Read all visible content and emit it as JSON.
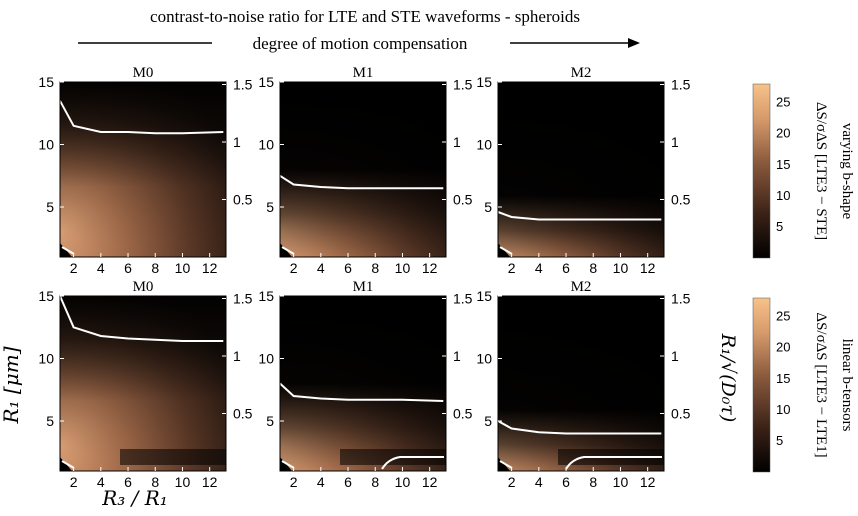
{
  "figure": {
    "title": "contrast-to-noise ratio for LTE and STE waveforms - spheroids",
    "arrow_label": "degree of motion compensation",
    "xlabel": "R₃ / R₁",
    "ylabel": "R₁ [μm]",
    "y2label": "R₁/√(D₀τ)",
    "row_labels": [
      "varying b-shape",
      "linear b-tensors"
    ],
    "colorbar_labels": [
      "ΔS/σΔS [LTE3 − STE]",
      "ΔS/σΔS [LTE3 − LTE1]"
    ],
    "colors": {
      "low": "#000000",
      "high": "#f5c089",
      "contour": "#ffffff"
    }
  },
  "chart_data": [
    {
      "type": "heatmap",
      "row": 0,
      "title": "M0",
      "x_ticks": [
        2,
        4,
        6,
        8,
        10,
        12
      ],
      "y_ticks": [
        5,
        10,
        15
      ],
      "y2_ticks": [
        0.5,
        1,
        1.5
      ],
      "xlim": [
        1,
        13
      ],
      "ylim": [
        1,
        15
      ],
      "contour_level_y": [
        13.5,
        11.5,
        11.0,
        11.0,
        10.9,
        10.9,
        11.0
      ],
      "contour_x": [
        1,
        2,
        4,
        6,
        8,
        10,
        13
      ]
    },
    {
      "type": "heatmap",
      "row": 0,
      "title": "M1",
      "x_ticks": [
        2,
        4,
        6,
        8,
        10,
        12
      ],
      "y_ticks": [
        5,
        10,
        15
      ],
      "y2_ticks": [
        0.5,
        1,
        1.5
      ],
      "xlim": [
        1,
        13
      ],
      "ylim": [
        1,
        15
      ],
      "contour_level_y": [
        7.5,
        6.8,
        6.6,
        6.5,
        6.5,
        6.5,
        6.5
      ],
      "contour_x": [
        1,
        2,
        4,
        6,
        8,
        10,
        13
      ]
    },
    {
      "type": "heatmap",
      "row": 0,
      "title": "M2",
      "x_ticks": [
        2,
        4,
        6,
        8,
        10,
        12
      ],
      "y_ticks": [
        5,
        10,
        15
      ],
      "y2_ticks": [
        0.5,
        1,
        1.5
      ],
      "xlim": [
        1,
        13
      ],
      "ylim": [
        1,
        15
      ],
      "contour_level_y": [
        4.6,
        4.2,
        4.0,
        4.0,
        4.0,
        4.0,
        4.0
      ],
      "contour_x": [
        1,
        2,
        4,
        6,
        8,
        10,
        13
      ]
    },
    {
      "type": "heatmap",
      "row": 1,
      "title": "M0",
      "x_ticks": [
        2,
        4,
        6,
        8,
        10,
        12
      ],
      "y_ticks": [
        5,
        10,
        15
      ],
      "y2_ticks": [
        0.5,
        1,
        1.5
      ],
      "xlim": [
        1,
        13
      ],
      "ylim": [
        1,
        15
      ],
      "contour_level_y": [
        15,
        12.5,
        11.8,
        11.6,
        11.5,
        11.4,
        11.4
      ],
      "contour_x": [
        1,
        2,
        4,
        6,
        8,
        10,
        13
      ]
    },
    {
      "type": "heatmap",
      "row": 1,
      "title": "M1",
      "x_ticks": [
        2,
        4,
        6,
        8,
        10,
        12
      ],
      "y_ticks": [
        5,
        10,
        15
      ],
      "y2_ticks": [
        0.5,
        1,
        1.5
      ],
      "xlim": [
        1,
        13
      ],
      "ylim": [
        1,
        15
      ],
      "contour_level_y": [
        8.0,
        7.0,
        6.8,
        6.7,
        6.7,
        6.7,
        6.6
      ],
      "contour_x": [
        1,
        2,
        4,
        6,
        8,
        10,
        13
      ]
    },
    {
      "type": "heatmap",
      "row": 1,
      "title": "M2",
      "x_ticks": [
        2,
        4,
        6,
        8,
        10,
        12
      ],
      "y_ticks": [
        5,
        10,
        15
      ],
      "y2_ticks": [
        0.5,
        1,
        1.5
      ],
      "xlim": [
        1,
        13
      ],
      "ylim": [
        1,
        15
      ],
      "contour_level_y": [
        5.0,
        4.4,
        4.1,
        4.0,
        4.0,
        4.0,
        4.0
      ],
      "contour_x": [
        1,
        2,
        4,
        6,
        8,
        10,
        13
      ]
    }
  ],
  "colorbar": {
    "ticks": [
      5,
      10,
      15,
      20,
      25
    ],
    "range": [
      0,
      28
    ]
  }
}
